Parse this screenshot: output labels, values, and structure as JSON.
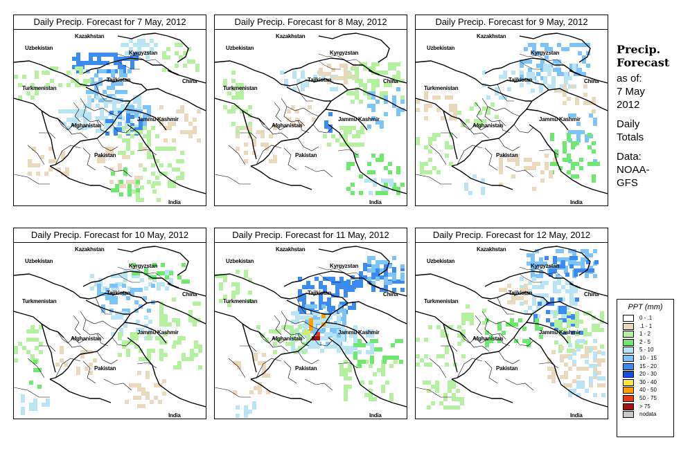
{
  "panels": [
    {
      "title": "Daily Precip. Forecast for  7 May, 2012"
    },
    {
      "title": "Daily Precip. Forecast for  8 May, 2012"
    },
    {
      "title": "Daily Precip. Forecast for  9 May, 2012"
    },
    {
      "title": "Daily Precip. Forecast for  10 May, 2012"
    },
    {
      "title": "Daily Precip. Forecast for  11 May, 2012"
    },
    {
      "title": "Daily Precip. Forecast for  12 May, 2012"
    }
  ],
  "map_labels": {
    "kazakhstan": "Kazakhstan",
    "uzbekistan": "Uzbekistan",
    "kyrgyzstan": "Kyrgyzstan",
    "tajikistan": "Tajikistan",
    "turkmenistan": "Turkmenistan",
    "china": "China",
    "afghanistan": "Afghanistan",
    "jammu_kashmir": "Jammu Kashmir",
    "pakistan": "Pakistan",
    "india": "India"
  },
  "side": {
    "heading_1": "Precip.",
    "heading_2": "Forecast",
    "asof_1": "as of:",
    "asof_2": "7 May",
    "asof_3": "2012",
    "daily_1": "Daily",
    "daily_2": "Totals",
    "data_1": "Data:",
    "data_2": "NOAA-",
    "data_3": "GFS"
  },
  "legend": {
    "title": "PPT (mm)",
    "items": [
      {
        "label": "0 - .1",
        "color": "#ffffff"
      },
      {
        "label": ".1 - 1",
        "color": "#e8d8bc"
      },
      {
        "label": "1 - 2",
        "color": "#b4f0a0"
      },
      {
        "label": "2 - 5",
        "color": "#6ee86e"
      },
      {
        "label": "5 - 10",
        "color": "#b8e4f4"
      },
      {
        "label": "10 - 15",
        "color": "#7cc4f8"
      },
      {
        "label": "15 - 20",
        "color": "#3c8cf0"
      },
      {
        "label": "20 - 30",
        "color": "#1450e0"
      },
      {
        "label": "30 - 40",
        "color": "#fae63c"
      },
      {
        "label": "40 - 50",
        "color": "#ffa000"
      },
      {
        "label": "50 - 75",
        "color": "#e63c14"
      },
      {
        "label": "> 75",
        "color": "#a01414"
      },
      {
        "label": "nodata",
        "color": "#c8c8c8"
      }
    ]
  }
}
